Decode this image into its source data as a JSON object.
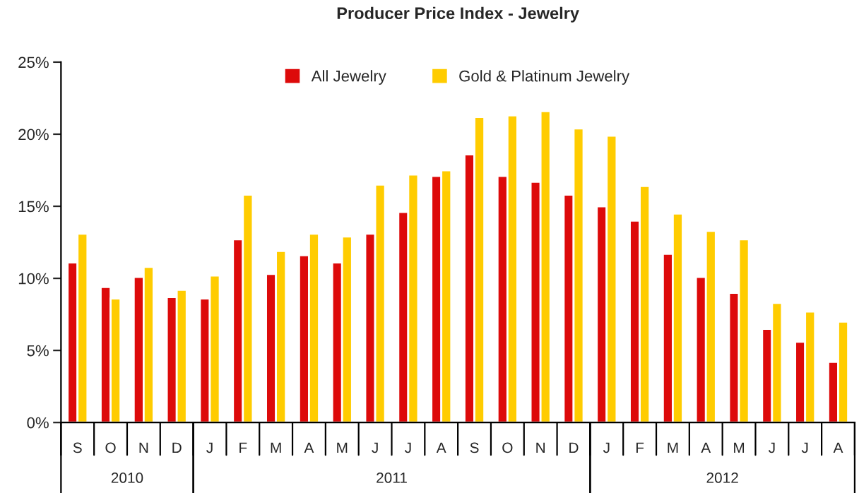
{
  "chart_data": {
    "type": "bar",
    "title": "Producer Price Index - Jewelry",
    "categories": [
      "S",
      "O",
      "N",
      "D",
      "J",
      "F",
      "M",
      "A",
      "M",
      "J",
      "J",
      "A",
      "S",
      "O",
      "N",
      "D",
      "J",
      "F",
      "M",
      "A",
      "M",
      "J",
      "J",
      "A"
    ],
    "series": [
      {
        "name": "All Jewelry",
        "color": "#dd0a0a",
        "values": [
          11.1,
          9.4,
          10.1,
          8.7,
          8.6,
          12.7,
          10.3,
          11.6,
          11.1,
          13.1,
          14.6,
          17.1,
          18.6,
          17.1,
          16.7,
          15.8,
          15.0,
          14.0,
          11.7,
          10.1,
          9.0,
          6.5,
          5.6,
          4.2
        ]
      },
      {
        "name": "Gold & Platinum Jewelry",
        "color": "#ffcc00",
        "values": [
          13.1,
          8.6,
          10.8,
          9.2,
          10.2,
          15.8,
          11.9,
          13.1,
          12.9,
          16.5,
          17.2,
          17.5,
          21.2,
          21.3,
          21.6,
          20.4,
          19.9,
          16.4,
          14.5,
          13.3,
          12.7,
          8.3,
          7.7,
          7.0
        ]
      }
    ],
    "ylim": [
      0,
      25
    ],
    "yticks": [
      {
        "value": 0,
        "label": "0%"
      },
      {
        "value": 5,
        "label": "5%"
      },
      {
        "value": 10,
        "label": "10%"
      },
      {
        "value": 15,
        "label": "15%"
      },
      {
        "value": 20,
        "label": "20%"
      },
      {
        "value": 25,
        "label": "25%"
      }
    ],
    "annotations": [
      "2010",
      "2011",
      "2012"
    ],
    "legend": "top",
    "grid": false
  }
}
